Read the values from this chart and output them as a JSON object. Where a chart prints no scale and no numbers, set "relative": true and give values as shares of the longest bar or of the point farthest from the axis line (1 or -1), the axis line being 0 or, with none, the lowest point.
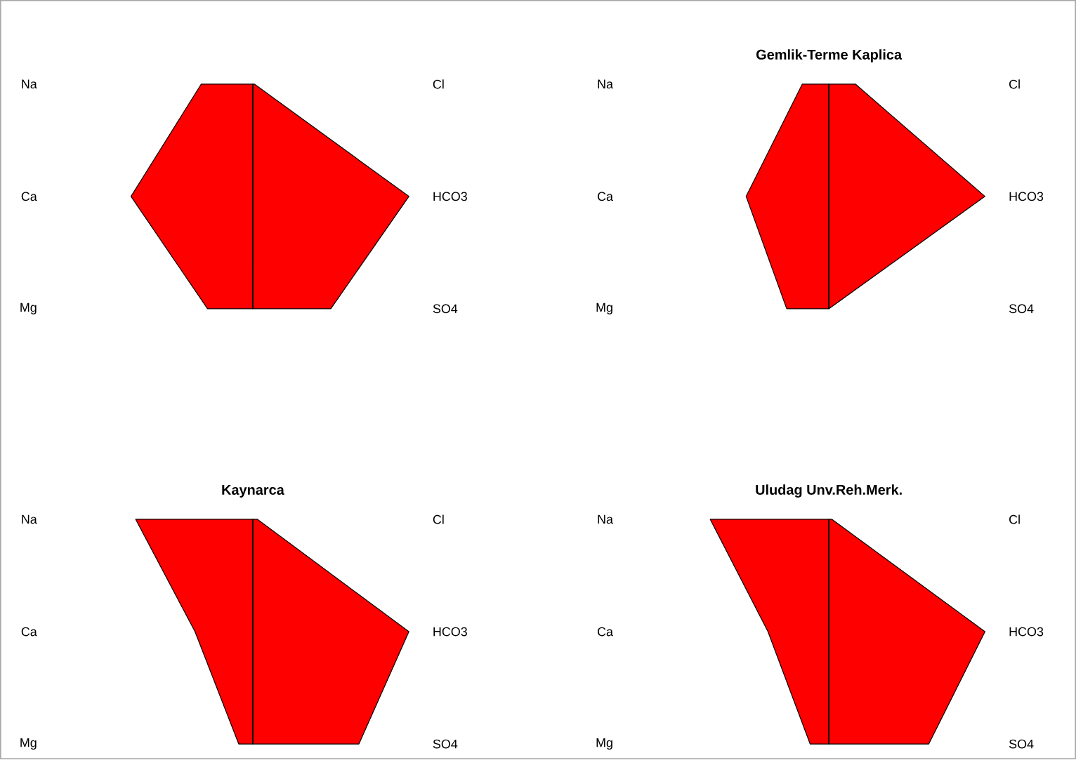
{
  "chart_data": [
    {
      "type": "area",
      "orientation": "horizontal",
      "relative": true,
      "categories": [
        "Na",
        "Ca",
        "Mg"
      ],
      "annotations": [
        "Cl",
        "HCO3",
        "SO4"
      ],
      "series": [
        {
          "color": "#ff0000",
          "values": [
            -0.33,
            -0.78,
            -0.29
          ]
        },
        {
          "color": "#fe0000",
          "values": [
            0.01,
            1,
            0.5
          ]
        }
      ]
    },
    {
      "type": "area",
      "orientation": "horizontal",
      "relative": true,
      "title": "Gemlik-Terme Kaplica",
      "categories": [
        "Na",
        "Ca",
        "Mg"
      ],
      "annotations": [
        "Cl",
        "HCO3",
        "SO4"
      ],
      "series": [
        {
          "color": "#ff0000",
          "values": [
            -0.17,
            -0.53,
            -0.27
          ]
        },
        {
          "color": "#fe0000",
          "values": [
            0.17,
            1,
            0
          ]
        }
      ]
    },
    {
      "type": "area",
      "orientation": "horizontal",
      "relative": true,
      "title": "Kaynarca",
      "categories": [
        "Na",
        "Ca",
        "Mg"
      ],
      "annotations": [
        "Cl",
        "HCO3",
        "SO4"
      ],
      "series": [
        {
          "color": "#ff0000",
          "values": [
            -0.75,
            -0.37,
            -0.09
          ]
        },
        {
          "color": "#fe0000",
          "values": [
            0.03,
            1,
            0.68
          ]
        }
      ]
    },
    {
      "type": "area",
      "orientation": "horizontal",
      "relative": true,
      "title": "Uludag Unv.Reh.Merk.",
      "categories": [
        "Na",
        "Ca",
        "Mg"
      ],
      "annotations": [
        "Cl",
        "HCO3",
        "SO4"
      ],
      "series": [
        {
          "color": "#ff0000",
          "values": [
            -0.76,
            -0.39,
            -0.12
          ]
        },
        {
          "color": "#fe0000",
          "values": [
            0.02,
            1,
            0.64
          ]
        }
      ]
    }
  ]
}
